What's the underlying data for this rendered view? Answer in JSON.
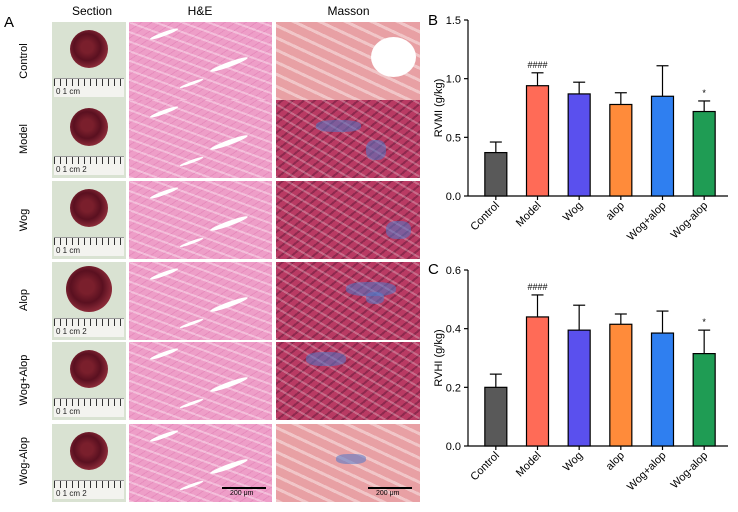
{
  "panel_letters": {
    "a": "A",
    "b": "B",
    "c": "C"
  },
  "columns": {
    "section": "Section",
    "he": "H&E",
    "masson": "Masson"
  },
  "rows": [
    "Control",
    "Model",
    "Wog",
    "Alop",
    "Wog+Alop",
    "Wog-Alop"
  ],
  "ruler_labels": {
    "r0": "0      1 cm",
    "r1": "0      1 cm   2",
    "r2": "0      1 cm",
    "r3": "0      1 cm   2",
    "r4": "0      1 cm",
    "r5": "0      1 cm   2"
  },
  "scale_bar": {
    "he": "200 μm",
    "masson": "200 μm"
  },
  "colors": {
    "control": "#595959",
    "model": "#ff6b57",
    "wog": "#5a50ee",
    "alop": "#ff8b3a",
    "wog_alop_plus": "#2f7ff0",
    "wog_alop_minus": "#1f9c54"
  },
  "chart_data": [
    {
      "type": "bar",
      "panel": "B",
      "ylabel": "RVMI (g/kg)",
      "categories": [
        "Control",
        "Model",
        "Wog",
        "alop",
        "Wog+alop",
        "Wog-alop"
      ],
      "values": [
        0.37,
        0.94,
        0.87,
        0.78,
        0.85,
        0.72
      ],
      "errors": [
        0.09,
        0.11,
        0.1,
        0.1,
        0.26,
        0.09
      ],
      "annotations": [
        "",
        "####",
        "",
        "",
        "",
        "*"
      ],
      "ylim": [
        0,
        1.5
      ],
      "yticks": [
        "0.0",
        "0.5",
        "1.0",
        "1.5"
      ]
    },
    {
      "type": "bar",
      "panel": "C",
      "ylabel": "RVHI (g/kg)",
      "categories": [
        "Control",
        "Model",
        "Wog",
        "alop",
        "Wog+alop",
        "Wog-alop"
      ],
      "values": [
        0.2,
        0.44,
        0.395,
        0.415,
        0.385,
        0.315
      ],
      "errors": [
        0.045,
        0.075,
        0.085,
        0.035,
        0.075,
        0.08
      ],
      "annotations": [
        "",
        "####",
        "",
        "",
        "",
        "*"
      ],
      "ylim": [
        0,
        0.6
      ],
      "yticks": [
        "0.0",
        "0.2",
        "0.4",
        "0.6"
      ]
    }
  ]
}
